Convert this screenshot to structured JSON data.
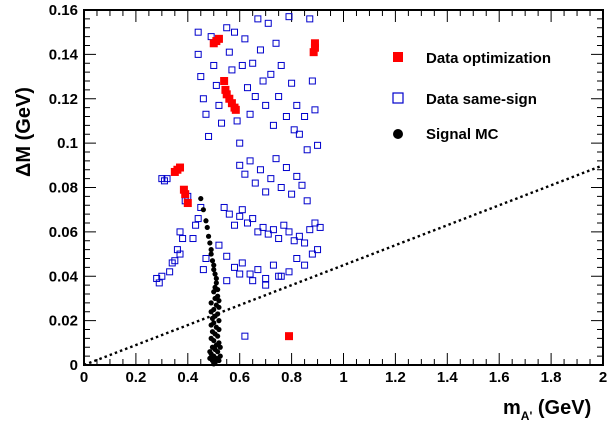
{
  "chart_data": {
    "type": "scatter",
    "xlabel": "m",
    "xlabel_sub": "A'",
    "xlabel_unit": " (GeV)",
    "ylabel": "ΔM (GeV)",
    "xlim": [
      0,
      2
    ],
    "ylim": [
      0,
      0.16
    ],
    "xticks": [
      "0",
      "0.2",
      "0.4",
      "0.6",
      "0.8",
      "1",
      "1.2",
      "1.4",
      "1.6",
      "1.8",
      "2"
    ],
    "yticks": [
      "0",
      "0.02",
      "0.04",
      "0.06",
      "0.08",
      "0.1",
      "0.12",
      "0.14",
      "0.16"
    ],
    "legend": [
      {
        "label": "Data optimization",
        "marker": "filled-square",
        "color": "#ff0000"
      },
      {
        "label": "Data same-sign",
        "marker": "open-square",
        "color": "#0000cc"
      },
      {
        "label": "Signal MC",
        "marker": "filled-circle",
        "color": "#000000"
      }
    ],
    "reference_line": {
      "style": "dotted",
      "color": "#000000",
      "points": [
        [
          0,
          0
        ],
        [
          2,
          0.09
        ]
      ]
    },
    "series": [
      {
        "name": "Data optimization",
        "marker": "filled-square",
        "color": "#ff0000",
        "points": [
          [
            0.35,
            0.087
          ],
          [
            0.36,
            0.088
          ],
          [
            0.37,
            0.089
          ],
          [
            0.385,
            0.079
          ],
          [
            0.39,
            0.077
          ],
          [
            0.4,
            0.073
          ],
          [
            0.5,
            0.145
          ],
          [
            0.51,
            0.146
          ],
          [
            0.52,
            0.147
          ],
          [
            0.54,
            0.128
          ],
          [
            0.545,
            0.124
          ],
          [
            0.55,
            0.122
          ],
          [
            0.56,
            0.12
          ],
          [
            0.57,
            0.118
          ],
          [
            0.58,
            0.116
          ],
          [
            0.585,
            0.115
          ],
          [
            0.79,
            0.013
          ],
          [
            0.885,
            0.141
          ],
          [
            0.89,
            0.143
          ],
          [
            0.89,
            0.145
          ]
        ]
      },
      {
        "name": "Data same-sign",
        "marker": "open-square",
        "color": "#0000cc",
        "points": [
          [
            0.28,
            0.039
          ],
          [
            0.29,
            0.037
          ],
          [
            0.3,
            0.04
          ],
          [
            0.3,
            0.084
          ],
          [
            0.31,
            0.083
          ],
          [
            0.32,
            0.084
          ],
          [
            0.33,
            0.042
          ],
          [
            0.34,
            0.046
          ],
          [
            0.35,
            0.047
          ],
          [
            0.36,
            0.052
          ],
          [
            0.37,
            0.05
          ],
          [
            0.37,
            0.06
          ],
          [
            0.38,
            0.057
          ],
          [
            0.39,
            0.074
          ],
          [
            0.4,
            0.076
          ],
          [
            0.42,
            0.057
          ],
          [
            0.43,
            0.063
          ],
          [
            0.44,
            0.066
          ],
          [
            0.45,
            0.071
          ],
          [
            0.46,
            0.043
          ],
          [
            0.47,
            0.048
          ],
          [
            0.44,
            0.15
          ],
          [
            0.44,
            0.14
          ],
          [
            0.45,
            0.13
          ],
          [
            0.46,
            0.12
          ],
          [
            0.47,
            0.113
          ],
          [
            0.48,
            0.103
          ],
          [
            0.49,
            0.148
          ],
          [
            0.5,
            0.135
          ],
          [
            0.51,
            0.126
          ],
          [
            0.52,
            0.117
          ],
          [
            0.53,
            0.109
          ],
          [
            0.55,
            0.152
          ],
          [
            0.56,
            0.141
          ],
          [
            0.57,
            0.133
          ],
          [
            0.58,
            0.15
          ],
          [
            0.59,
            0.11
          ],
          [
            0.6,
            0.1
          ],
          [
            0.61,
            0.135
          ],
          [
            0.62,
            0.147
          ],
          [
            0.63,
            0.125
          ],
          [
            0.64,
            0.113
          ],
          [
            0.65,
            0.136
          ],
          [
            0.66,
            0.121
          ],
          [
            0.67,
            0.156
          ],
          [
            0.68,
            0.142
          ],
          [
            0.69,
            0.128
          ],
          [
            0.7,
            0.117
          ],
          [
            0.71,
            0.154
          ],
          [
            0.72,
            0.131
          ],
          [
            0.73,
            0.108
          ],
          [
            0.74,
            0.145
          ],
          [
            0.75,
            0.121
          ],
          [
            0.76,
            0.135
          ],
          [
            0.78,
            0.112
          ],
          [
            0.79,
            0.157
          ],
          [
            0.8,
            0.127
          ],
          [
            0.81,
            0.106
          ],
          [
            0.82,
            0.117
          ],
          [
            0.83,
            0.104
          ],
          [
            0.85,
            0.112
          ],
          [
            0.86,
            0.097
          ],
          [
            0.87,
            0.156
          ],
          [
            0.88,
            0.128
          ],
          [
            0.89,
            0.115
          ],
          [
            0.9,
            0.099
          ],
          [
            0.6,
            0.09
          ],
          [
            0.62,
            0.086
          ],
          [
            0.64,
            0.092
          ],
          [
            0.66,
            0.082
          ],
          [
            0.68,
            0.088
          ],
          [
            0.7,
            0.078
          ],
          [
            0.72,
            0.084
          ],
          [
            0.74,
            0.093
          ],
          [
            0.76,
            0.08
          ],
          [
            0.78,
            0.089
          ],
          [
            0.8,
            0.077
          ],
          [
            0.82,
            0.085
          ],
          [
            0.84,
            0.081
          ],
          [
            0.86,
            0.074
          ],
          [
            0.54,
            0.071
          ],
          [
            0.56,
            0.068
          ],
          [
            0.58,
            0.063
          ],
          [
            0.6,
            0.067
          ],
          [
            0.61,
            0.07
          ],
          [
            0.63,
            0.064
          ],
          [
            0.65,
            0.066
          ],
          [
            0.67,
            0.06
          ],
          [
            0.69,
            0.062
          ],
          [
            0.71,
            0.059
          ],
          [
            0.73,
            0.061
          ],
          [
            0.75,
            0.057
          ],
          [
            0.77,
            0.063
          ],
          [
            0.79,
            0.06
          ],
          [
            0.81,
            0.056
          ],
          [
            0.83,
            0.058
          ],
          [
            0.85,
            0.055
          ],
          [
            0.87,
            0.061
          ],
          [
            0.89,
            0.064
          ],
          [
            0.91,
            0.062
          ],
          [
            0.52,
            0.054
          ],
          [
            0.55,
            0.049
          ],
          [
            0.58,
            0.044
          ],
          [
            0.61,
            0.046
          ],
          [
            0.64,
            0.041
          ],
          [
            0.67,
            0.043
          ],
          [
            0.7,
            0.039
          ],
          [
            0.73,
            0.045
          ],
          [
            0.76,
            0.04
          ],
          [
            0.79,
            0.042
          ],
          [
            0.82,
            0.048
          ],
          [
            0.85,
            0.045
          ],
          [
            0.88,
            0.05
          ],
          [
            0.9,
            0.052
          ],
          [
            0.55,
            0.038
          ],
          [
            0.6,
            0.041
          ],
          [
            0.65,
            0.038
          ],
          [
            0.7,
            0.036
          ],
          [
            0.75,
            0.04
          ],
          [
            0.62,
            0.013
          ]
        ]
      },
      {
        "name": "Signal MC",
        "marker": "filled-circle",
        "color": "#000000",
        "points": [
          [
            0.45,
            0.075
          ],
          [
            0.46,
            0.07
          ],
          [
            0.47,
            0.065
          ],
          [
            0.475,
            0.062
          ],
          [
            0.48,
            0.058
          ],
          [
            0.485,
            0.055
          ],
          [
            0.49,
            0.052
          ],
          [
            0.49,
            0.05
          ],
          [
            0.495,
            0.047
          ],
          [
            0.5,
            0.045
          ],
          [
            0.5,
            0.043
          ],
          [
            0.505,
            0.041
          ],
          [
            0.51,
            0.039
          ],
          [
            0.51,
            0.037
          ],
          [
            0.505,
            0.035
          ],
          [
            0.515,
            0.034
          ],
          [
            0.5,
            0.033
          ],
          [
            0.515,
            0.031
          ],
          [
            0.505,
            0.03
          ],
          [
            0.52,
            0.029
          ],
          [
            0.49,
            0.028
          ],
          [
            0.51,
            0.027
          ],
          [
            0.52,
            0.026
          ],
          [
            0.5,
            0.025
          ],
          [
            0.49,
            0.024
          ],
          [
            0.515,
            0.023
          ],
          [
            0.505,
            0.022
          ],
          [
            0.495,
            0.021
          ],
          [
            0.52,
            0.02
          ],
          [
            0.5,
            0.019
          ],
          [
            0.49,
            0.018
          ],
          [
            0.51,
            0.017
          ],
          [
            0.52,
            0.016
          ],
          [
            0.495,
            0.015
          ],
          [
            0.505,
            0.014
          ],
          [
            0.515,
            0.013
          ],
          [
            0.49,
            0.012
          ],
          [
            0.5,
            0.011
          ],
          [
            0.52,
            0.01
          ],
          [
            0.51,
            0.009
          ],
          [
            0.495,
            0.008
          ],
          [
            0.505,
            0.007
          ],
          [
            0.515,
            0.006
          ],
          [
            0.49,
            0.005
          ],
          [
            0.5,
            0.004
          ],
          [
            0.51,
            0.003
          ],
          [
            0.52,
            0.002
          ],
          [
            0.495,
            0.002
          ],
          [
            0.505,
            0.001
          ],
          [
            0.5,
            0.0005
          ],
          [
            0.485,
            0.006
          ],
          [
            0.525,
            0.008
          ],
          [
            0.485,
            0.003
          ],
          [
            0.525,
            0.004
          ]
        ]
      }
    ]
  }
}
